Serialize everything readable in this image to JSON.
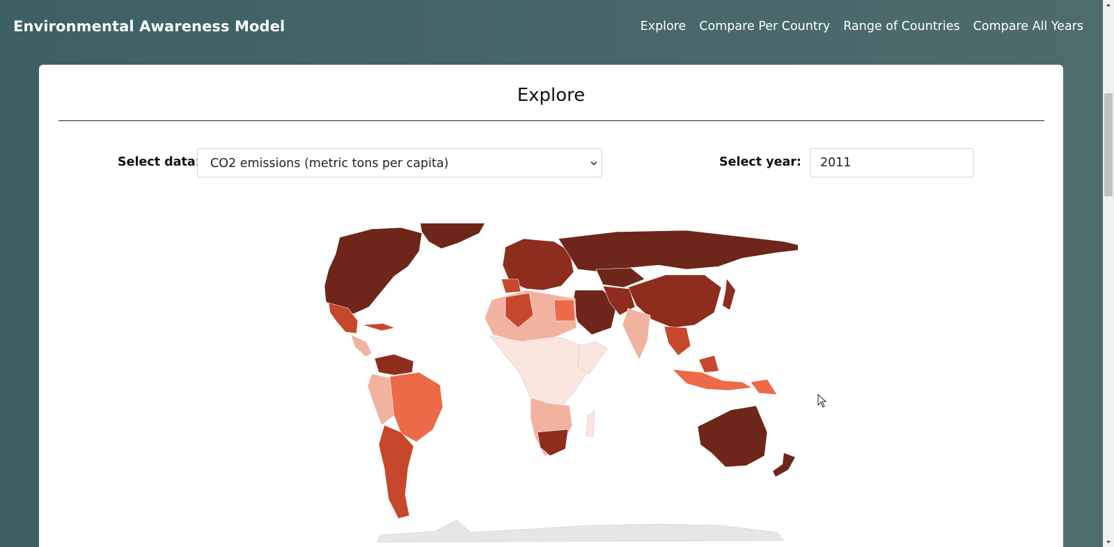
{
  "app": {
    "title": "Environmental Awareness Model"
  },
  "nav": {
    "items": [
      {
        "label": "Explore"
      },
      {
        "label": "Compare Per Country"
      },
      {
        "label": "Range of Countries"
      },
      {
        "label": "Compare All Years"
      }
    ]
  },
  "page": {
    "title": "Explore"
  },
  "controls": {
    "data_label": "Select data:",
    "data_selected": "CO2 emissions (metric tons per capita)",
    "year_label": "Select year:",
    "year_value": "2011"
  },
  "map": {
    "type": "choropleth-world",
    "palette": [
      "#fbe6df",
      "#f2b2a0",
      "#ec6a47",
      "#c7472d",
      "#8e2c1e",
      "#6d2619"
    ],
    "no_data_color": "#e6e6e6"
  },
  "colors": {
    "header_bg": "#41666a",
    "card_bg": "#ffffff"
  },
  "icons": {
    "select_caret": "chevron-down-icon",
    "cursor": "mouse-pointer-icon"
  }
}
